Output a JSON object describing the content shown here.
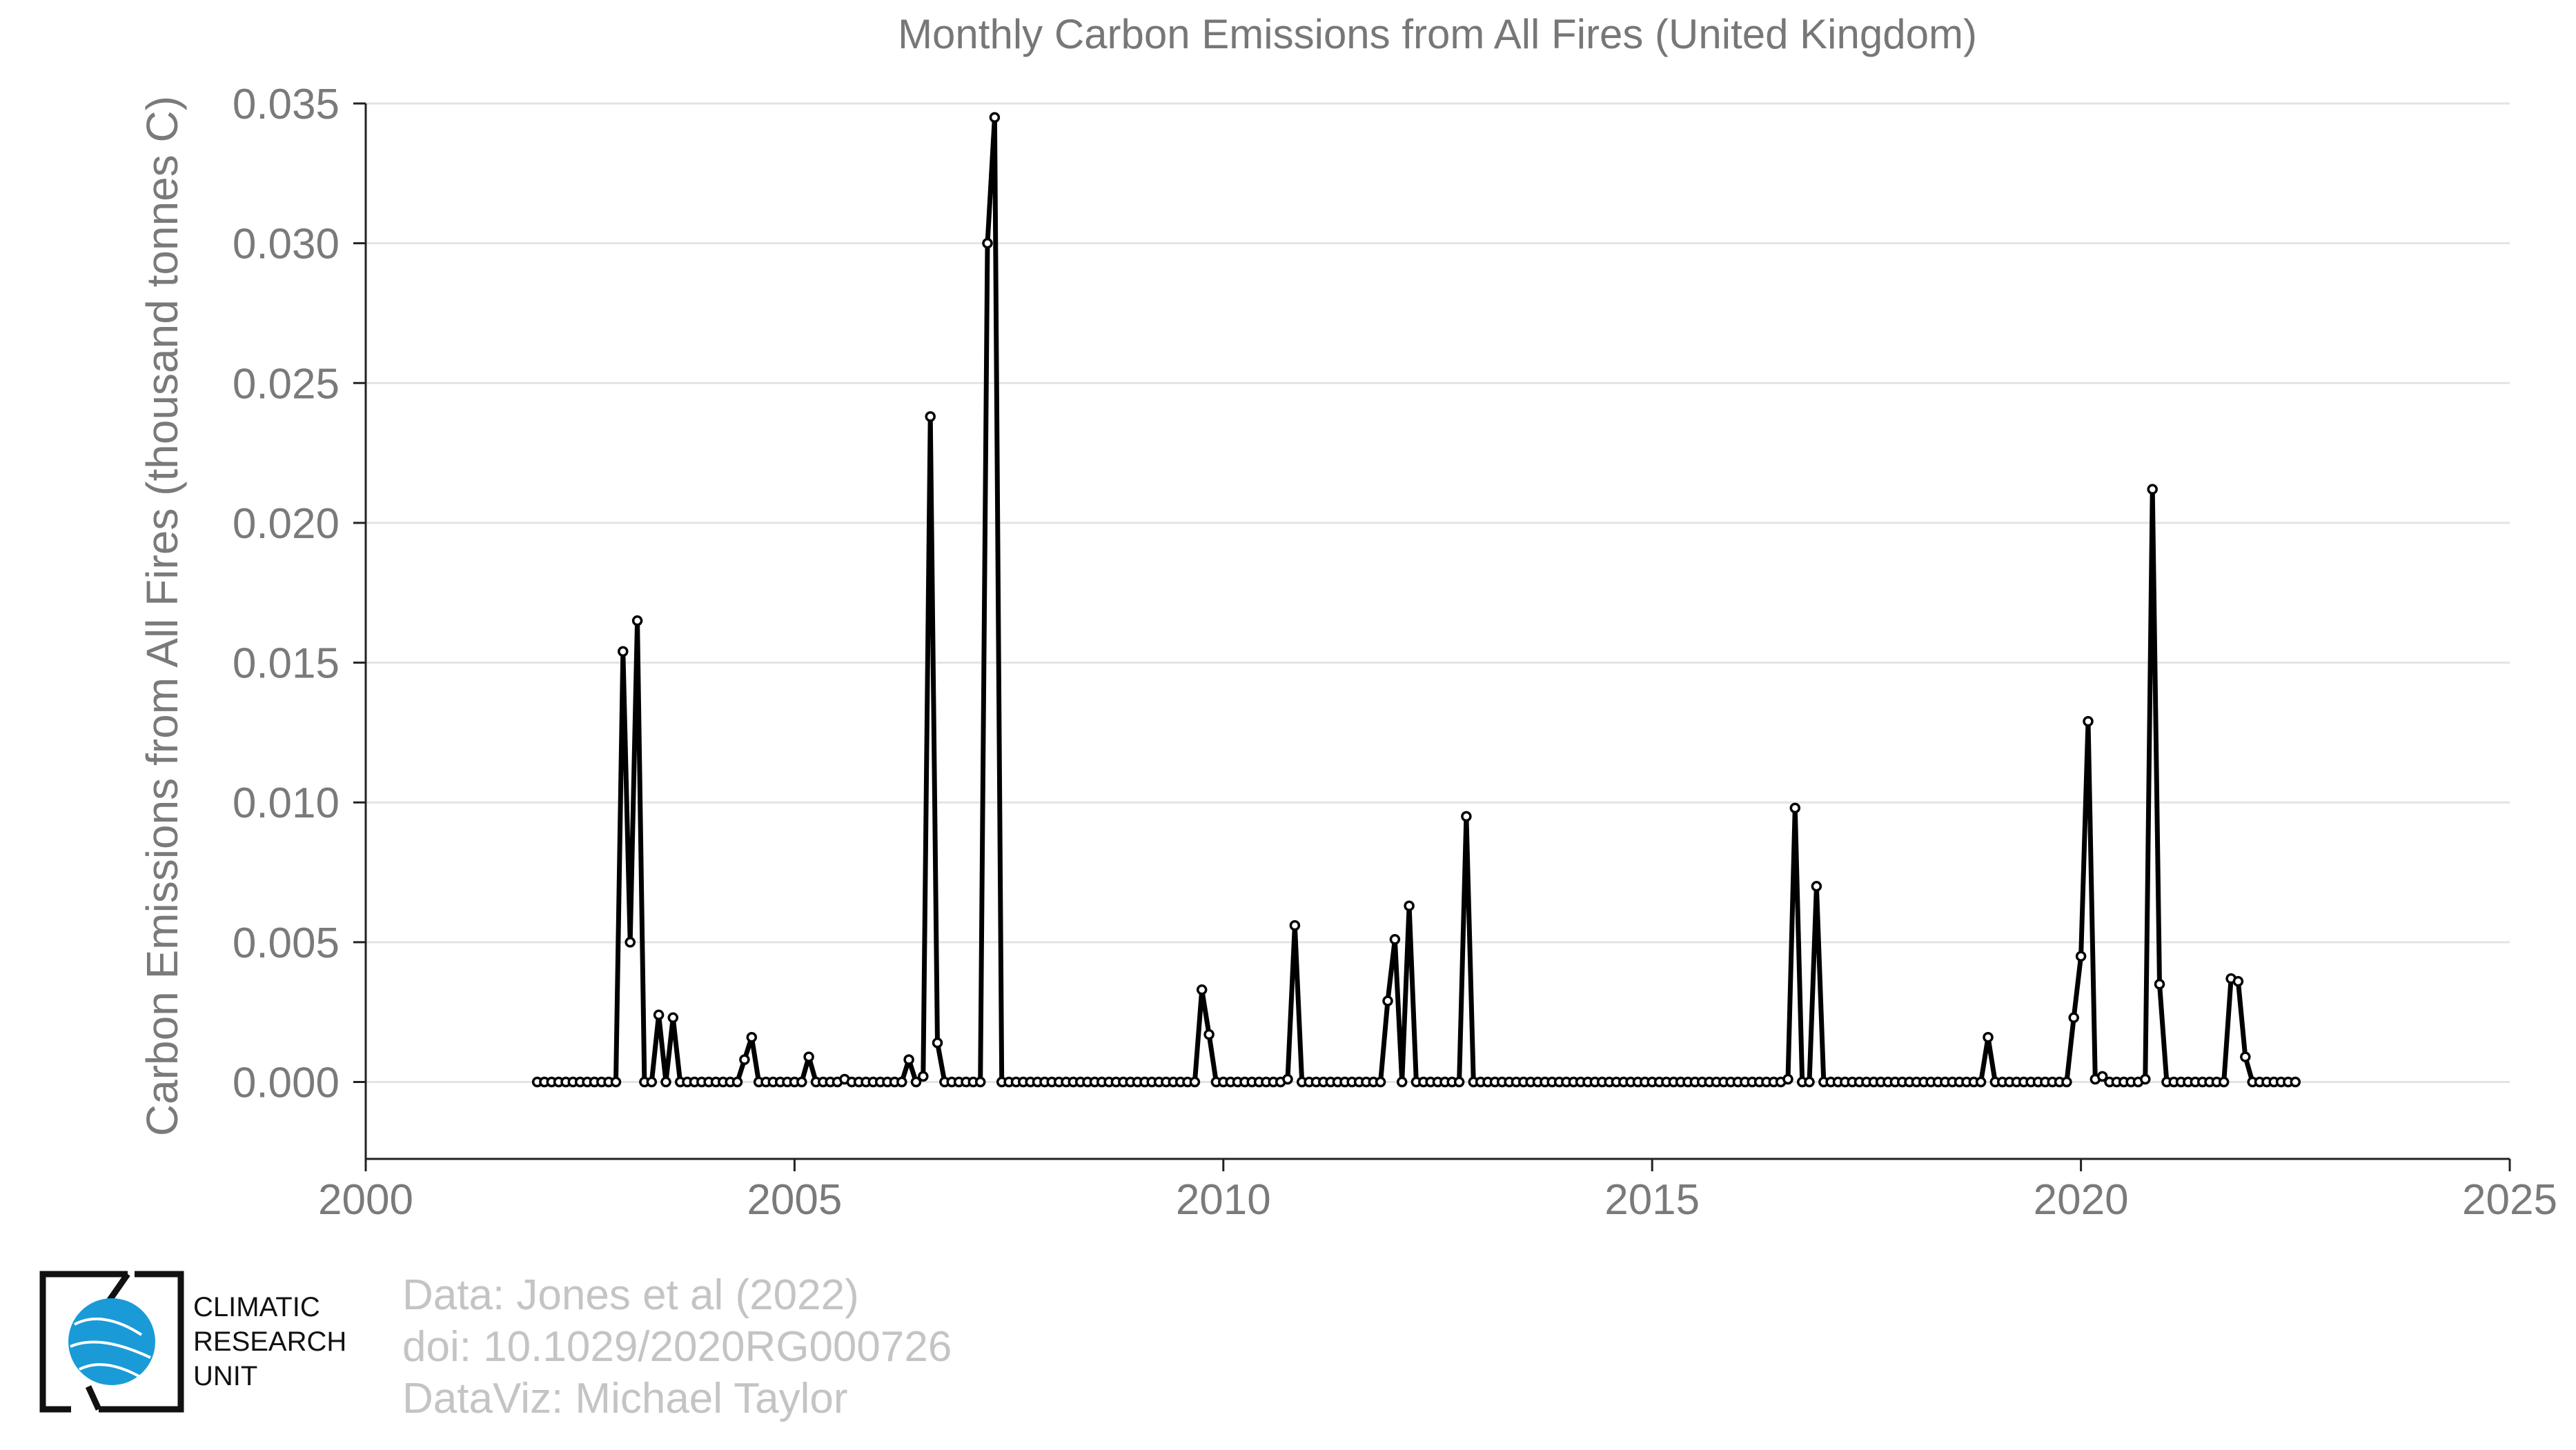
{
  "chart_data": {
    "type": "line",
    "title": "Monthly Carbon Emissions from All Fires (United Kingdom)",
    "xlabel": "",
    "ylabel": "Carbon Emissions from All Fires (thousand tonnes C)",
    "xlim": [
      2000,
      2025
    ],
    "ylim": [
      -0.00275,
      0.035
    ],
    "x_ticks": [
      "2000",
      "2005",
      "2010",
      "2015",
      "2020",
      "2025"
    ],
    "y_ticks": [
      "0.000",
      "0.005",
      "0.010",
      "0.015",
      "0.020",
      "0.025",
      "0.030",
      "0.035"
    ],
    "grid": "horizontal",
    "legend": "none",
    "start": "2002-01",
    "x_frequency": "monthly",
    "series": [
      {
        "values": [
          0,
          0,
          0,
          0,
          0,
          0,
          0,
          0,
          0,
          0,
          0,
          0,
          0.0154,
          0.005,
          0.0165,
          0,
          0,
          0.0024,
          0,
          0.0023,
          0,
          0,
          0,
          0,
          0,
          0,
          0,
          0,
          0,
          0.0008,
          0.0016,
          0,
          0,
          0,
          0,
          0,
          0,
          0,
          0.0009,
          0,
          0,
          0,
          0,
          0.0001,
          0,
          0,
          0,
          0,
          0,
          0,
          0,
          0,
          0.0008,
          0,
          0.0002,
          0.0238,
          0.0014,
          0,
          0,
          0,
          0,
          0,
          0,
          0.03,
          0.0345,
          0,
          0,
          0,
          0,
          0,
          0,
          0,
          0,
          0,
          0,
          0,
          0,
          0,
          0,
          0,
          0,
          0,
          0,
          0,
          0,
          0,
          0,
          0,
          0,
          0,
          0,
          0,
          0,
          0.0033,
          0.0017,
          0,
          0,
          0,
          0,
          0,
          0,
          0,
          0,
          0,
          0,
          0.0001,
          0.0056,
          0,
          0,
          0,
          0,
          0,
          0,
          0,
          0,
          0,
          0,
          0,
          0,
          0.0029,
          0.0051,
          0,
          0.0063,
          0,
          0,
          0,
          0,
          0,
          0,
          0,
          0.0095,
          0,
          0,
          0,
          0,
          0,
          0,
          0,
          0,
          0,
          0,
          0,
          0,
          0,
          0,
          0,
          0,
          0,
          0,
          0,
          0,
          0,
          0,
          0,
          0,
          0,
          0,
          0,
          0,
          0,
          0,
          0,
          0,
          0,
          0,
          0,
          0,
          0,
          0,
          0,
          0,
          0,
          0,
          0,
          0,
          0.0001,
          0.0098,
          0,
          0,
          0.007,
          0,
          0,
          0,
          0,
          0,
          0,
          0,
          0,
          0,
          0,
          0,
          0,
          0,
          0,
          0,
          0,
          0,
          0,
          0,
          0,
          0,
          0,
          0,
          0.0016,
          0,
          0,
          0,
          0,
          0,
          0,
          0,
          0,
          0,
          0,
          0,
          0.0023,
          0.0045,
          0.0129,
          0.0001,
          0.0002,
          0,
          0,
          0,
          0,
          0,
          0.0001,
          0.0212,
          0.0035,
          0,
          0,
          0,
          0,
          0,
          0,
          0,
          0,
          0,
          0.0037,
          0.0036,
          0.0009,
          0,
          0,
          0,
          0,
          0,
          0,
          0
        ]
      }
    ]
  },
  "logo": {
    "line1": "CLIMATIC",
    "line2": "RESEARCH",
    "line3": "UNIT"
  },
  "credits": {
    "data": "Data: Jones et al (2022)",
    "doi": "doi: 10.1029/2020RG000726",
    "viz": "DataViz: Michael Taylor"
  }
}
